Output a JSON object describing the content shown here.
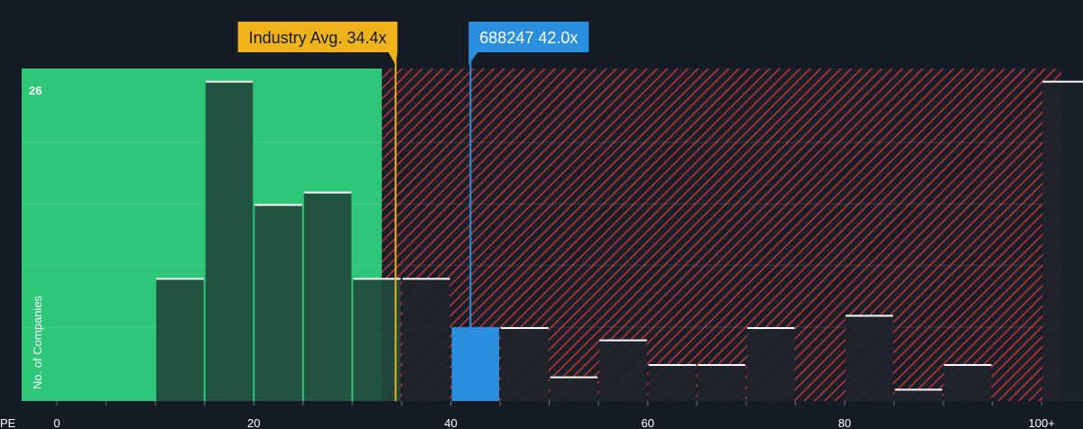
{
  "chart_data": {
    "type": "bar",
    "x_axis_label": "PE",
    "y_axis_label": "No. of Companies",
    "x_ticks": [
      "0",
      "20",
      "40",
      "60",
      "80",
      "100+"
    ],
    "x_tick_values": [
      0,
      20,
      40,
      60,
      80,
      100
    ],
    "xlim": [
      0,
      102
    ],
    "ylim": [
      0,
      27
    ],
    "y_max_label": "26",
    "bin_width": 5,
    "bins": [
      {
        "start": 10,
        "count": 10
      },
      {
        "start": 15,
        "count": 26
      },
      {
        "start": 20,
        "count": 16
      },
      {
        "start": 25,
        "count": 17
      },
      {
        "start": 30,
        "count": 10
      },
      {
        "start": 35,
        "count": 10
      },
      {
        "start": 40,
        "count": 6,
        "highlight": true
      },
      {
        "start": 45,
        "count": 6
      },
      {
        "start": 50,
        "count": 2
      },
      {
        "start": 55,
        "count": 5
      },
      {
        "start": 60,
        "count": 3
      },
      {
        "start": 65,
        "count": 3
      },
      {
        "start": 70,
        "count": 6
      },
      {
        "start": 80,
        "count": 7
      },
      {
        "start": 85,
        "count": 1
      },
      {
        "start": 90,
        "count": 3
      },
      {
        "start": 100,
        "count": 26
      }
    ],
    "fair_zone_end": 33,
    "industry_avg": {
      "label": "Industry Avg. 34.4x",
      "value": 34.4
    },
    "company": {
      "label": "688247 42.0x",
      "value": 42.0
    },
    "colors": {
      "background": "#151b24",
      "fair_zone": "#2ec77a",
      "overvalued_hatch": "#c0353b",
      "bar_fill": "#1f4a3c",
      "bar_fill_dark": "#1d232b",
      "bar_top": "#ffffff",
      "highlight_bar": "#2b8fe0",
      "industry_callout": "#f0b21a",
      "company_callout": "#2b8fe0"
    }
  }
}
